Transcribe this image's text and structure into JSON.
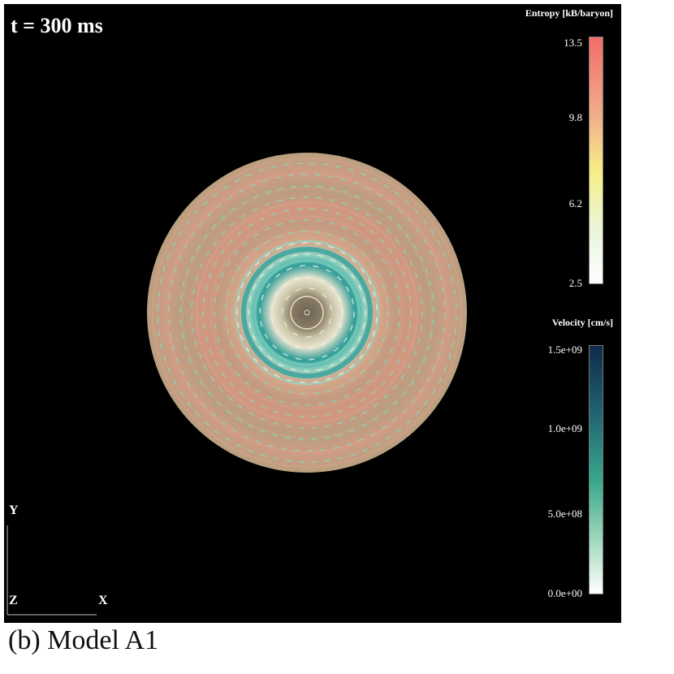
{
  "figure": {
    "time_label": "t = 300 ms",
    "caption": "(b) Model A1"
  },
  "entropy_colorbar": {
    "title": "Entropy [kB/baryon]",
    "ticks": [
      "13.5",
      "9.8",
      "6.2",
      "2.5"
    ],
    "color_top": "#f36d6a",
    "color_mid": "#f6ef86",
    "color_bottom": "#ffffff"
  },
  "velocity_colorbar": {
    "title": "Velocity [cm/s]",
    "ticks": [
      "1.5e+09",
      "1.0e+09",
      "5.0e+08",
      "0.0e+00"
    ],
    "color_top": "#0e2a4a",
    "color_mid": "#3aa88d",
    "color_bottom": "#ffffff"
  },
  "axes": {
    "y": "Y",
    "z": "Z",
    "x": "X"
  },
  "colors": {
    "background": "#000000",
    "disk_outer": "#b9a080",
    "ring_warm": "#d89a82",
    "ring_teal": "#3ea6a0",
    "arrow": "#7fe0c3"
  }
}
